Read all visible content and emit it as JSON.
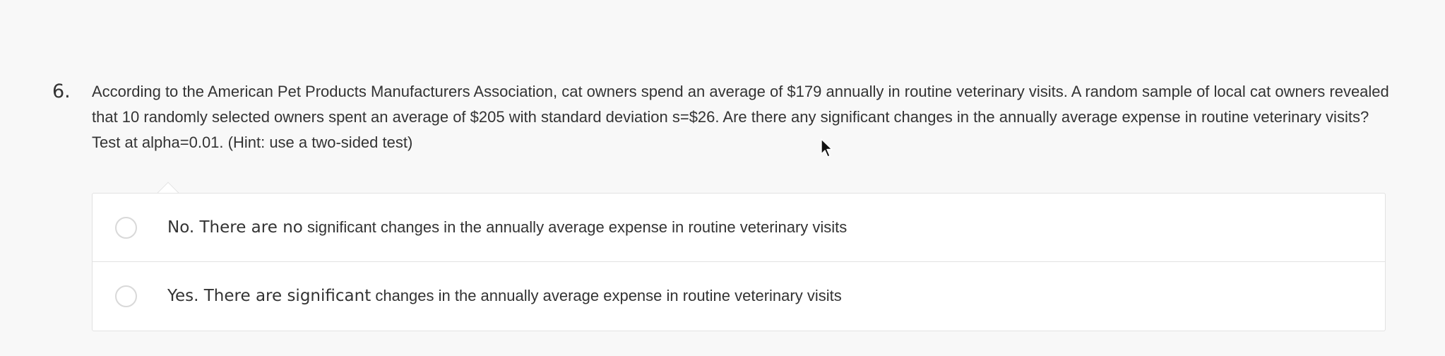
{
  "question": {
    "number": "6.",
    "text": "According to the American Pet Products Manufacturers Association, cat owners spend an average of $179 annually in routine veterinary visits. A random sample of local cat owners revealed that 10 randomly selected owners spent an average of $205 with standard deviation s=$26. Are there any significant changes in the annually average expense in routine veterinary visits? Test at alpha=0.01. (Hint: use a two-sided test)"
  },
  "options": [
    {
      "lead": "No. There are no",
      "rest": " significant changes in the annually average expense in routine veterinary visits"
    },
    {
      "lead": "Yes. There are significant",
      "rest": " changes in the annually average expense in routine veterinary visits"
    }
  ],
  "icons": {
    "radio": "radio-circle-icon",
    "cursor": "mouse-pointer-icon"
  },
  "colors": {
    "background": "#f8f8f8",
    "text": "#333333",
    "border": "#e2e2e2"
  }
}
